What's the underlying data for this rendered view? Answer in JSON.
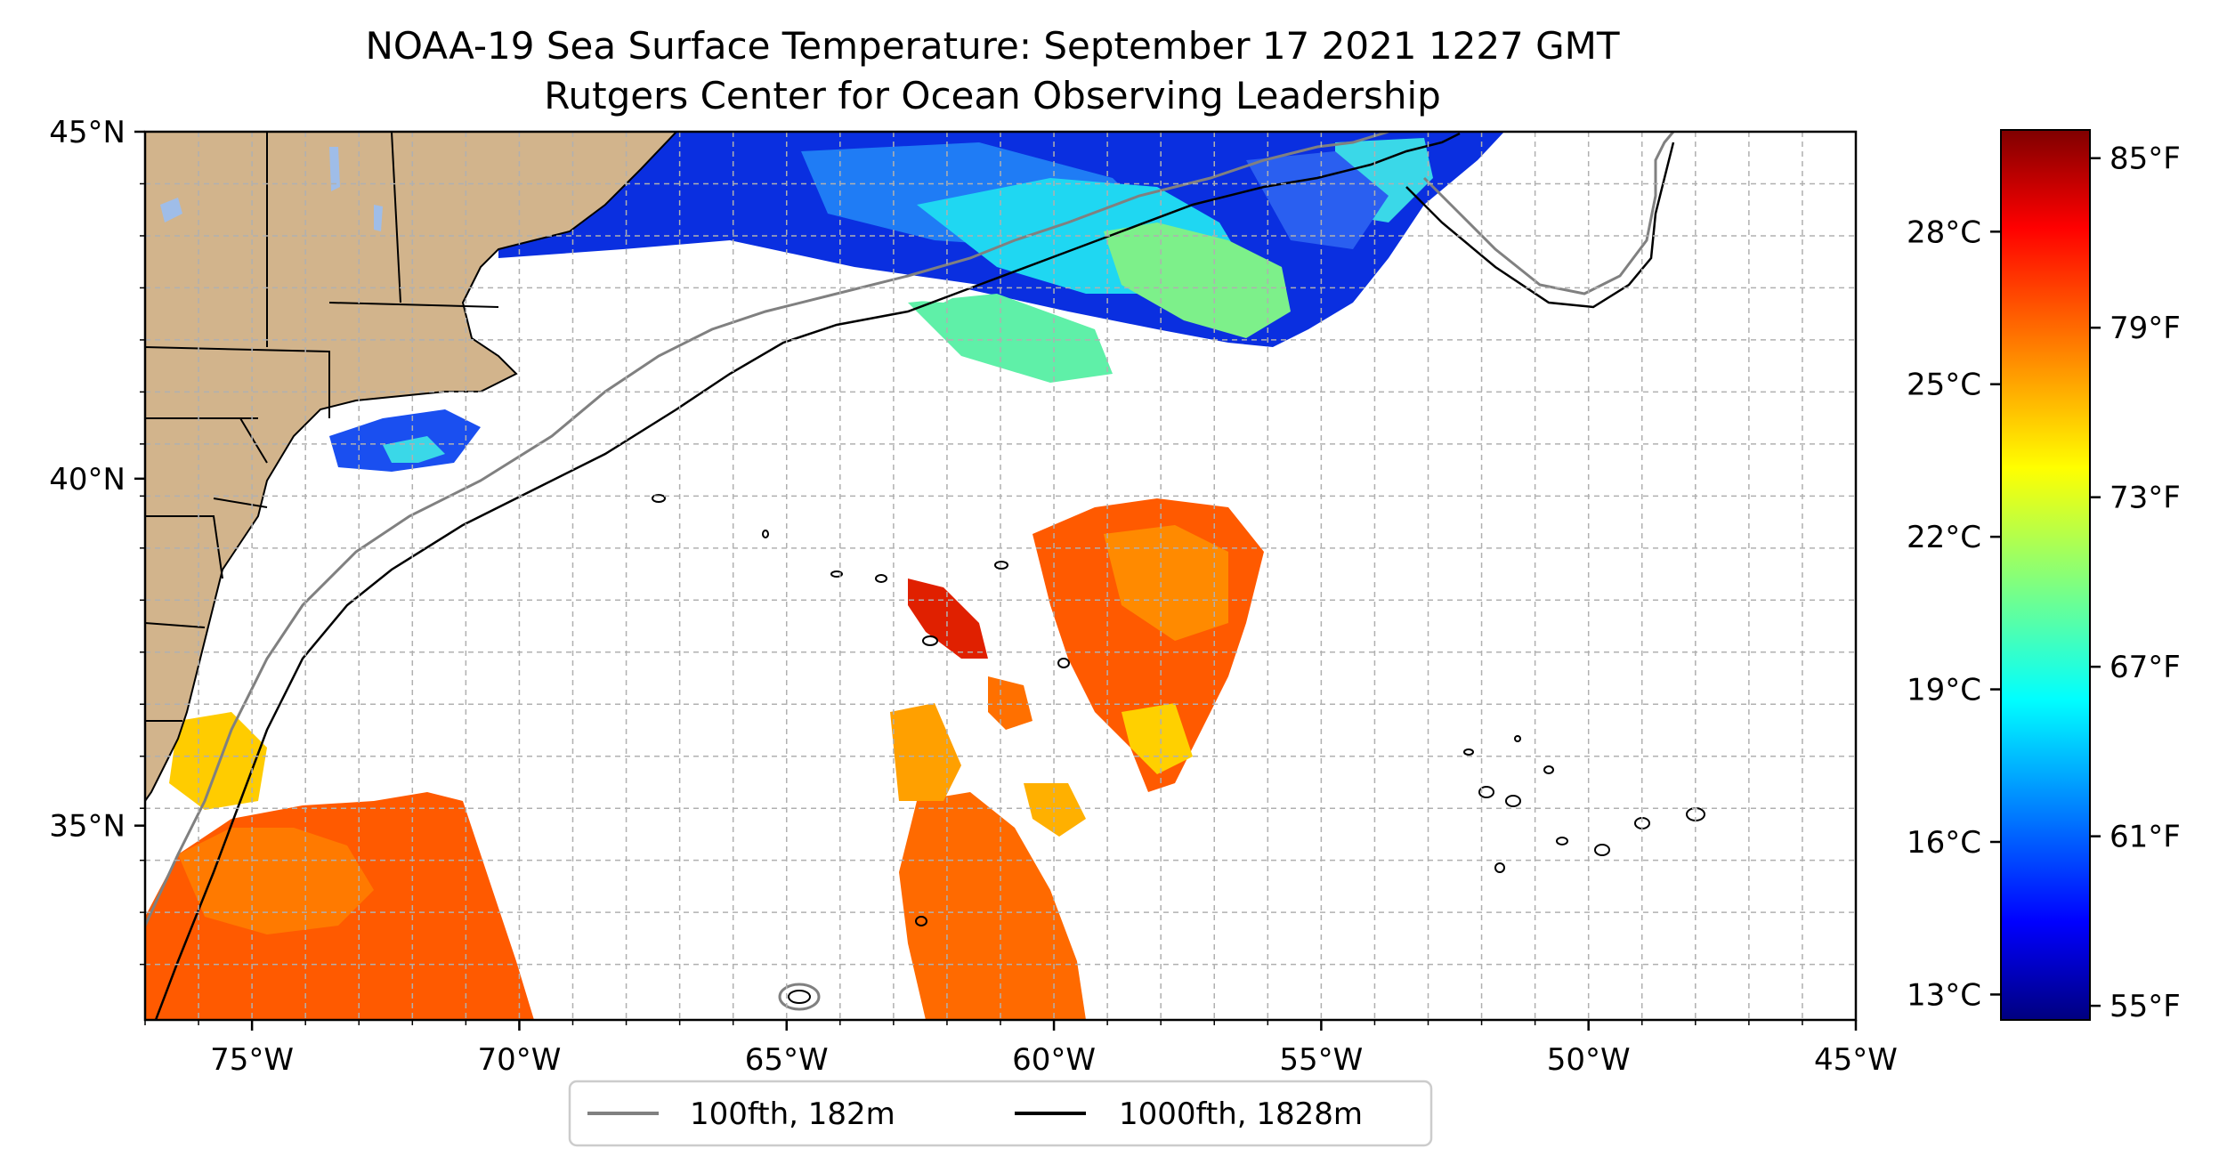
{
  "title": {
    "line1": "NOAA-19 Sea Surface Temperature: September 17 2021 1227 GMT",
    "line2": "Rutgers Center for Ocean Observing Leadership"
  },
  "map": {
    "lon_range": [
      -77,
      -45
    ],
    "lat_range": [
      32.2,
      45
    ],
    "lon_ticks": [
      {
        "value": -75,
        "label": "75°W"
      },
      {
        "value": -70,
        "label": "70°W"
      },
      {
        "value": -65,
        "label": "65°W"
      },
      {
        "value": -60,
        "label": "60°W"
      },
      {
        "value": -55,
        "label": "55°W"
      },
      {
        "value": -50,
        "label": "50°W"
      },
      {
        "value": -45,
        "label": "45°W"
      }
    ],
    "lat_ticks": [
      {
        "value": 45,
        "label": "45°N"
      },
      {
        "value": 40,
        "label": "40°N"
      },
      {
        "value": 35,
        "label": "35°N"
      }
    ],
    "grid": true,
    "land_color": "#d2b48c",
    "lake_color": "#9fbde8"
  },
  "legend": {
    "items": [
      {
        "label": "100fth, 182m",
        "color": "#808080"
      },
      {
        "label": "1000fth, 1828m",
        "color": "#000000"
      }
    ],
    "placement": "bottom-center"
  },
  "colorbar": {
    "colormap": "jet",
    "range_f": [
      54.5,
      86
    ],
    "celsius_ticks": [
      {
        "value": 28,
        "label": "28°C"
      },
      {
        "value": 25,
        "label": "25°C"
      },
      {
        "value": 22,
        "label": "22°C"
      },
      {
        "value": 19,
        "label": "19°C"
      },
      {
        "value": 16,
        "label": "16°C"
      },
      {
        "value": 13,
        "label": "13°C"
      }
    ],
    "fahrenheit_ticks": [
      {
        "value": 85,
        "label": "85°F"
      },
      {
        "value": 79,
        "label": "79°F"
      },
      {
        "value": 73,
        "label": "73°F"
      },
      {
        "value": 67,
        "label": "67°F"
      },
      {
        "value": 61,
        "label": "61°F"
      },
      {
        "value": 55,
        "label": "55°F"
      }
    ]
  }
}
